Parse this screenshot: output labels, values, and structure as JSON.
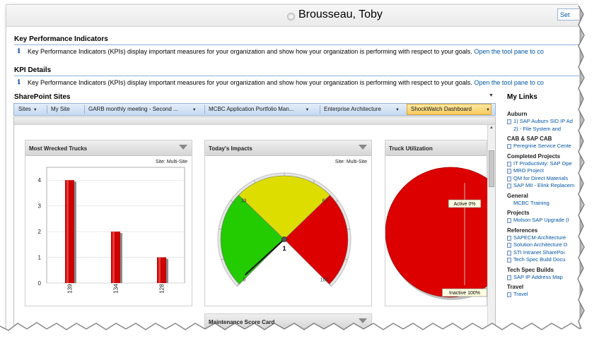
{
  "header": {
    "user_name": "Brousseau, Toby",
    "settings_label": "Set"
  },
  "kpi": {
    "title": "Key Performance Indicators",
    "text": "Key Performance Indicators (KPIs) display important measures for your organization and show how your organization is performing with respect to your goals.",
    "link": "Open the tool pane to co"
  },
  "kpi_details": {
    "title": "KPI Details",
    "text": "Key Performance Indicators (KPIs) display important measures for your organization and show how your organization is performing with respect to your goals.",
    "link": "Open the tool pane to co"
  },
  "sharepoint": {
    "title": "SharePoint Sites",
    "nav": [
      {
        "label": "Sites",
        "dropdown": true
      },
      {
        "label": "My Site",
        "dropdown": false
      },
      {
        "label": "GARB monthly meeting - Second ...",
        "dropdown": true
      },
      {
        "label": "MCBC Application Portfolio Man...",
        "dropdown": true
      },
      {
        "label": "Enterprise Architecture",
        "dropdown": true
      },
      {
        "label": "ShockWatch Dashboard",
        "dropdown": true
      }
    ]
  },
  "panels": {
    "trucks": {
      "title": "Most Wrecked Trucks",
      "site": "Site: Multi-Site"
    },
    "impacts": {
      "title": "Today's Impacts",
      "site": "Site: Multi-Site"
    },
    "utilization": {
      "title": "Truck Utilization"
    },
    "maintenance": {
      "title": "Maintenance Score Card"
    }
  },
  "chart_data": [
    {
      "type": "bar",
      "title": "Most Wrecked Trucks",
      "categories": [
        "139",
        "134",
        "128"
      ],
      "values": [
        4,
        2,
        1
      ],
      "ylim": [
        0,
        4.5
      ],
      "yticks": [
        "0",
        "1",
        "2",
        "3",
        "4"
      ],
      "grid": true,
      "colors": {
        "bar": "#cc0000",
        "shadow": "#8c8c8c"
      }
    },
    {
      "type": "gauge",
      "title": "Today's Impacts",
      "range": [
        0,
        100
      ],
      "bands": [
        {
          "from": 0,
          "to": 33,
          "color": "#22cc00"
        },
        {
          "from": 33,
          "to": 67,
          "color": "#dddd00"
        },
        {
          "from": 67,
          "to": 100,
          "color": "#dd0000"
        }
      ],
      "tick_labels": [
        "0",
        "33",
        "67",
        "100"
      ],
      "value": 1,
      "value_label": "1"
    },
    {
      "type": "pie",
      "title": "Truck Utilization",
      "slices": [
        {
          "label": "Active 0%",
          "value": 0,
          "color": "#00aa00"
        },
        {
          "label": "Inactive 100%",
          "value": 100,
          "color": "#dd0000"
        }
      ]
    }
  ],
  "my_links": {
    "title": "My Links",
    "groups": [
      {
        "name": "Auburn",
        "items": [
          "1) SAP Auburn SID IP Ad",
          "2) - File System and"
        ]
      },
      {
        "name": "CAB & SAP CAB",
        "items": [
          "Peregrine Service Cente"
        ]
      },
      {
        "name": "Completed Projects",
        "items": [
          "IT Productivity: SAP Ope",
          "MRO Project",
          "QM for Direct Materials",
          "SAP MII - Elink Replacem"
        ]
      },
      {
        "name": "General",
        "items": [
          "MCBC Training"
        ]
      },
      {
        "name": "Projects",
        "items": [
          "Molson SAP Upgrade (I"
        ]
      },
      {
        "name": "References",
        "items": [
          "SAPECM-Architecture",
          "Solution Architecture D",
          "STI Intranet SharePoi",
          "Tech Spec Build Docu"
        ]
      },
      {
        "name": "Tech Spec Builds",
        "items": [
          "SAP IP Address Map"
        ]
      },
      {
        "name": "Travel",
        "items": [
          "Travel"
        ]
      }
    ]
  }
}
